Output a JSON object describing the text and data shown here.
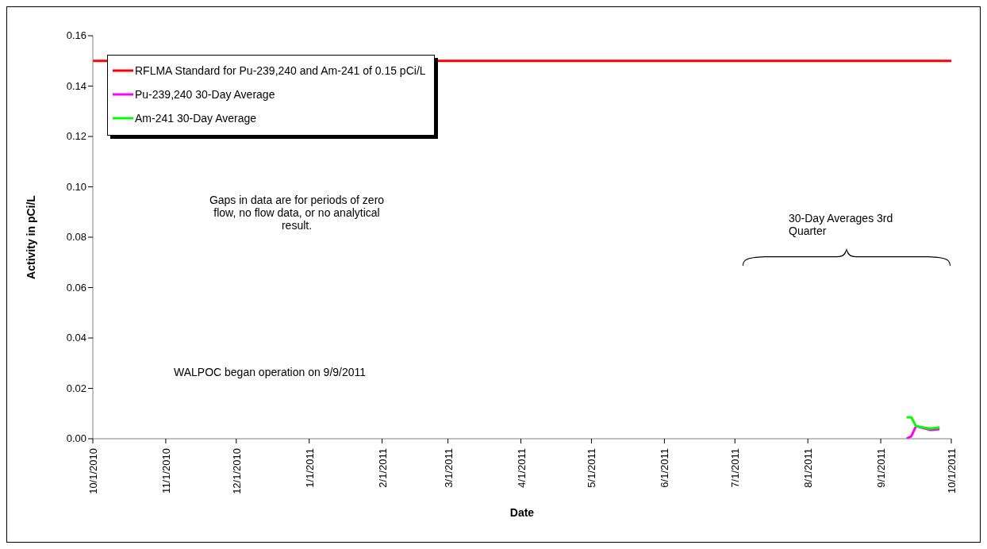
{
  "chart_data": {
    "type": "line",
    "xlabel": "Date",
    "ylabel": "Activity in pCi/L",
    "x": [
      "2011-09-12",
      "2011-09-14",
      "2011-09-16",
      "2011-09-19",
      "2011-09-22",
      "2011-09-26"
    ],
    "series": [
      {
        "name": "RFLMA Standard for Pu-239,240 and Am-241 of 0.15 pCi/L",
        "color": "#ff0000",
        "x": [
          "2010-10-01",
          "2011-10-01"
        ],
        "values": [
          0.15,
          0.15
        ]
      },
      {
        "name": "Pu-239,240 30-Day Average",
        "color": "#ff00ff",
        "values": [
          0,
          0.001,
          0.005,
          0.0042,
          0.0035,
          0.0038
        ]
      },
      {
        "name": "Am-241 30-Day Average",
        "color": "#00ff00",
        "values": [
          0.0085,
          0.0085,
          0.005,
          0.0045,
          0.004,
          0.0045
        ]
      }
    ],
    "xlim": [
      "2010-10-01",
      "2011-10-01"
    ],
    "xticks": [
      {
        "value": "2010-10-01",
        "label": "10/1/2010"
      },
      {
        "value": "2010-11-01",
        "label": "11/1/2010"
      },
      {
        "value": "2010-12-01",
        "label": "12/1/2010"
      },
      {
        "value": "2011-01-01",
        "label": "1/1/2011"
      },
      {
        "value": "2011-02-01",
        "label": "2/1/2011"
      },
      {
        "value": "2011-03-01",
        "label": "3/1/2011"
      },
      {
        "value": "2011-04-01",
        "label": "4/1/2011"
      },
      {
        "value": "2011-05-01",
        "label": "5/1/2011"
      },
      {
        "value": "2011-06-01",
        "label": "6/1/2011"
      },
      {
        "value": "2011-07-01",
        "label": "7/1/2011"
      },
      {
        "value": "2011-08-01",
        "label": "8/1/2011"
      },
      {
        "value": "2011-09-01",
        "label": "9/1/2011"
      },
      {
        "value": "2011-10-01",
        "label": "10/1/2011"
      }
    ],
    "ylim": [
      0,
      0.16
    ],
    "yticks": [
      {
        "value": 0,
        "label": "0.00"
      },
      {
        "value": 0.02,
        "label": "0.02"
      },
      {
        "value": 0.04,
        "label": "0.04"
      },
      {
        "value": 0.06,
        "label": "0.06"
      },
      {
        "value": 0.08,
        "label": "0.08"
      },
      {
        "value": 0.1,
        "label": "0.10"
      },
      {
        "value": 0.12,
        "label": "0.12"
      },
      {
        "value": 0.14,
        "label": "0.14"
      },
      {
        "value": 0.16,
        "label": "0.16"
      }
    ],
    "grid": false,
    "legend": "top left",
    "marker": "none",
    "line_style": "solid",
    "annotations": [
      "Gaps in data are for periods of zero flow, no flow data, or no analytical result.",
      "WALPOC began operation on 9/9/2011",
      "30-Day Averages 3rd Quarter"
    ]
  }
}
